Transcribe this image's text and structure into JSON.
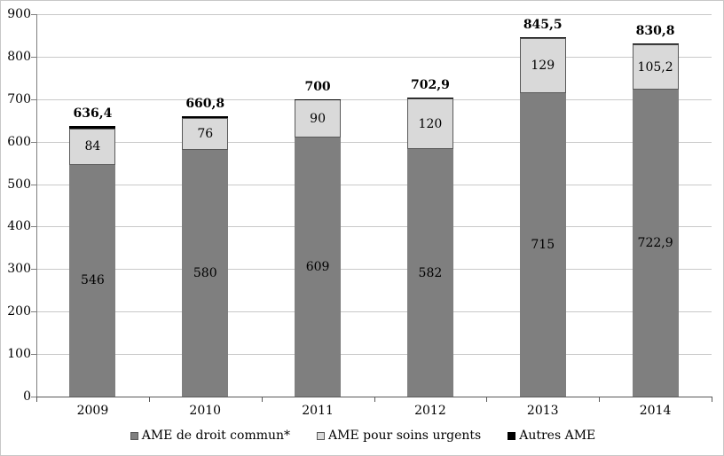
{
  "chart_data": {
    "type": "bar",
    "stacked": true,
    "title": "",
    "categories": [
      "2009",
      "2010",
      "2011",
      "2012",
      "2013",
      "2014"
    ],
    "series": [
      {
        "name": "AME de droit commun*",
        "color": "#7f7f7f",
        "values": [
          546,
          580,
          609,
          582,
          715,
          722.9
        ],
        "value_labels": [
          "546",
          "580",
          "609",
          "582",
          "715",
          "722,9"
        ]
      },
      {
        "name": "AME pour soins urgents",
        "color": "#d9d9d9",
        "values": [
          84,
          76,
          90,
          120,
          129,
          105.2
        ],
        "value_labels": [
          "84",
          "76",
          "90",
          "120",
          "129",
          "105,2"
        ]
      },
      {
        "name": "Autres AME",
        "color": "#000000",
        "values": [
          6.4,
          4.8,
          1,
          0.9,
          1.5,
          2.7
        ],
        "value_labels": [
          "",
          "",
          "",
          "",
          "",
          ""
        ]
      }
    ],
    "totals": {
      "values": [
        636.4,
        660.8,
        700,
        702.9,
        845.5,
        830.8
      ],
      "labels": [
        "636,4",
        "660,8",
        "700",
        "702,9",
        "845,5",
        "830,8"
      ]
    },
    "y_axis": {
      "min": 0,
      "max": 900,
      "step": 100,
      "tick_labels": [
        "0",
        "100",
        "200",
        "300",
        "400",
        "500",
        "600",
        "700",
        "800",
        "900"
      ]
    },
    "legend": {
      "position": "bottom"
    },
    "grid": true,
    "colors": {
      "grid": "#c9c9c9",
      "axis_y": "#7f7f7f",
      "axis_x": "#595959",
      "segment_border": "#595959",
      "text": "#000000",
      "background": "#ffffff"
    }
  }
}
